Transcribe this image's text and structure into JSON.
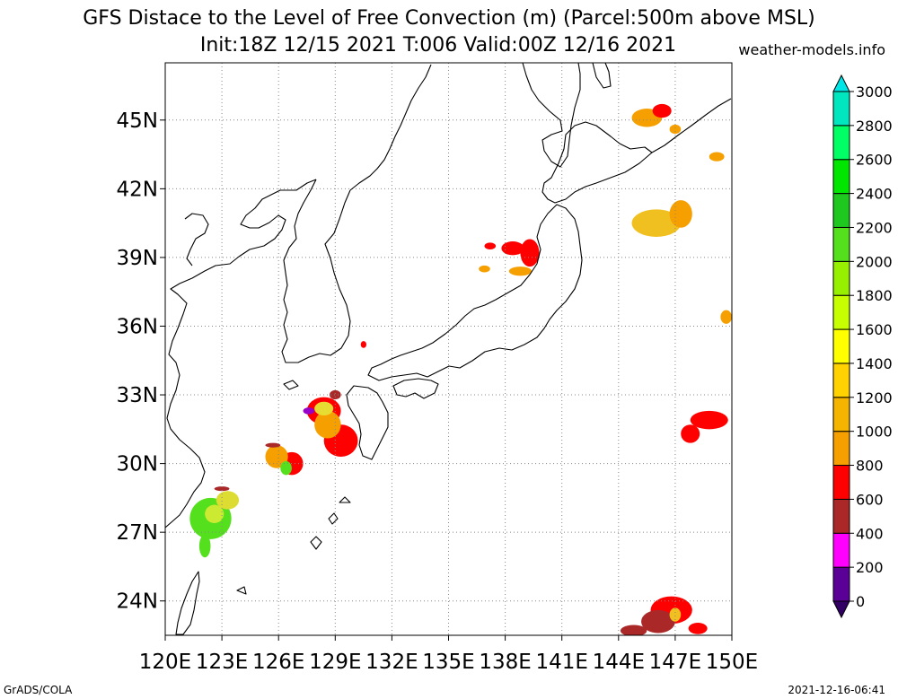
{
  "header": {
    "title_line1": "GFS Distace to the Level of Free Convection (m) (Parcel:500m above MSL)",
    "title_line2": "Init:18Z 12/15 2021 T:006 Valid:00Z 12/16 2021",
    "site": "weather-models.info"
  },
  "footer": {
    "left": "GrADS/COLA",
    "right": "2021-12-16-06:41"
  },
  "map": {
    "lon_range": [
      120,
      150
    ],
    "lat_range": [
      22.5,
      47.5
    ],
    "lon_ticks": [
      {
        "value": 120,
        "label": "120E"
      },
      {
        "value": 123,
        "label": "123E"
      },
      {
        "value": 126,
        "label": "126E"
      },
      {
        "value": 129,
        "label": "129E"
      },
      {
        "value": 132,
        "label": "132E"
      },
      {
        "value": 135,
        "label": "135E"
      },
      {
        "value": 138,
        "label": "138E"
      },
      {
        "value": 141,
        "label": "141E"
      },
      {
        "value": 144,
        "label": "144E"
      },
      {
        "value": 147,
        "label": "147E"
      },
      {
        "value": 150,
        "label": "150E"
      }
    ],
    "lat_ticks": [
      {
        "value": 24,
        "label": "24N"
      },
      {
        "value": 27,
        "label": "27N"
      },
      {
        "value": 30,
        "label": "30N"
      },
      {
        "value": 33,
        "label": "33N"
      },
      {
        "value": 36,
        "label": "36N"
      },
      {
        "value": 39,
        "label": "39N"
      },
      {
        "value": 42,
        "label": "42N"
      },
      {
        "value": 45,
        "label": "45N"
      }
    ],
    "grid": true,
    "field_patches": [
      {
        "lon": 122.4,
        "lat": 27.6,
        "rx": 1.1,
        "ry": 0.9,
        "color": "#55e01e"
      },
      {
        "lon": 122.6,
        "lat": 27.8,
        "rx": 0.5,
        "ry": 0.4,
        "color": "#cdea32"
      },
      {
        "lon": 123.3,
        "lat": 28.4,
        "rx": 0.6,
        "ry": 0.4,
        "color": "#dcdc32"
      },
      {
        "lon": 122.1,
        "lat": 26.4,
        "rx": 0.3,
        "ry": 0.5,
        "color": "#55e01e"
      },
      {
        "lon": 123.0,
        "lat": 28.9,
        "rx": 0.4,
        "ry": 0.1,
        "color": "#aa2828"
      },
      {
        "lon": 126.7,
        "lat": 30.0,
        "rx": 0.6,
        "ry": 0.5,
        "color": "#ff0000"
      },
      {
        "lon": 125.9,
        "lat": 30.3,
        "rx": 0.6,
        "ry": 0.5,
        "color": "#f5a000"
      },
      {
        "lon": 126.4,
        "lat": 29.8,
        "rx": 0.3,
        "ry": 0.3,
        "color": "#55e01e"
      },
      {
        "lon": 125.7,
        "lat": 30.8,
        "rx": 0.4,
        "ry": 0.1,
        "color": "#aa2828"
      },
      {
        "lon": 128.4,
        "lat": 32.3,
        "rx": 0.9,
        "ry": 0.6,
        "color": "#ff0000"
      },
      {
        "lon": 129.3,
        "lat": 31.0,
        "rx": 0.9,
        "ry": 0.7,
        "color": "#ff0000"
      },
      {
        "lon": 128.6,
        "lat": 31.7,
        "rx": 0.7,
        "ry": 0.6,
        "color": "#f5a000"
      },
      {
        "lon": 128.4,
        "lat": 32.4,
        "rx": 0.5,
        "ry": 0.3,
        "color": "#e6dc32"
      },
      {
        "lon": 127.6,
        "lat": 32.3,
        "rx": 0.3,
        "ry": 0.15,
        "color": "#9600c8"
      },
      {
        "lon": 129.0,
        "lat": 33.0,
        "rx": 0.3,
        "ry": 0.2,
        "color": "#aa2828"
      },
      {
        "lon": 130.5,
        "lat": 35.2,
        "rx": 0.15,
        "ry": 0.15,
        "color": "#ff0000"
      },
      {
        "lon": 138.4,
        "lat": 39.4,
        "rx": 0.6,
        "ry": 0.3,
        "color": "#ff0000"
      },
      {
        "lon": 139.3,
        "lat": 39.2,
        "rx": 0.5,
        "ry": 0.6,
        "color": "#ff0000"
      },
      {
        "lon": 138.8,
        "lat": 38.4,
        "rx": 0.6,
        "ry": 0.2,
        "color": "#f5a000"
      },
      {
        "lon": 137.2,
        "lat": 39.5,
        "rx": 0.3,
        "ry": 0.15,
        "color": "#ff0000"
      },
      {
        "lon": 136.9,
        "lat": 38.5,
        "rx": 0.3,
        "ry": 0.15,
        "color": "#f5a000"
      },
      {
        "lon": 145.5,
        "lat": 45.1,
        "rx": 0.8,
        "ry": 0.4,
        "color": "#f5a000"
      },
      {
        "lon": 146.3,
        "lat": 45.4,
        "rx": 0.5,
        "ry": 0.3,
        "color": "#ff0000"
      },
      {
        "lon": 147.0,
        "lat": 44.6,
        "rx": 0.3,
        "ry": 0.2,
        "color": "#f5a000"
      },
      {
        "lon": 149.2,
        "lat": 43.4,
        "rx": 0.4,
        "ry": 0.2,
        "color": "#f5a000"
      },
      {
        "lon": 146.0,
        "lat": 40.5,
        "rx": 1.3,
        "ry": 0.6,
        "color": "#f0c020"
      },
      {
        "lon": 147.3,
        "lat": 40.9,
        "rx": 0.6,
        "ry": 0.6,
        "color": "#f5a000"
      },
      {
        "lon": 149.7,
        "lat": 36.4,
        "rx": 0.3,
        "ry": 0.3,
        "color": "#f5a000"
      },
      {
        "lon": 148.8,
        "lat": 31.9,
        "rx": 1.0,
        "ry": 0.4,
        "color": "#ff0000"
      },
      {
        "lon": 147.8,
        "lat": 31.3,
        "rx": 0.5,
        "ry": 0.4,
        "color": "#ff0000"
      },
      {
        "lon": 146.8,
        "lat": 23.6,
        "rx": 1.1,
        "ry": 0.6,
        "color": "#ff0000"
      },
      {
        "lon": 146.1,
        "lat": 23.1,
        "rx": 0.9,
        "ry": 0.5,
        "color": "#aa2828"
      },
      {
        "lon": 144.8,
        "lat": 22.7,
        "rx": 0.7,
        "ry": 0.25,
        "color": "#aa2828"
      },
      {
        "lon": 148.2,
        "lat": 22.8,
        "rx": 0.5,
        "ry": 0.25,
        "color": "#ff0000"
      },
      {
        "lon": 147.0,
        "lat": 23.4,
        "rx": 0.3,
        "ry": 0.3,
        "color": "#f0c020"
      }
    ]
  },
  "colorbar": {
    "levels": [
      {
        "value": 0,
        "label": "0"
      },
      {
        "value": 200,
        "label": "200"
      },
      {
        "value": 400,
        "label": "400"
      },
      {
        "value": 600,
        "label": "600"
      },
      {
        "value": 800,
        "label": "800"
      },
      {
        "value": 1000,
        "label": "1000"
      },
      {
        "value": 1200,
        "label": "1200"
      },
      {
        "value": 1400,
        "label": "1400"
      },
      {
        "value": 1600,
        "label": "1600"
      },
      {
        "value": 1800,
        "label": "1800"
      },
      {
        "value": 2000,
        "label": "2000"
      },
      {
        "value": 2200,
        "label": "2200"
      },
      {
        "value": 2400,
        "label": "2400"
      },
      {
        "value": 2600,
        "label": "2600"
      },
      {
        "value": 2800,
        "label": "2800"
      },
      {
        "value": 3000,
        "label": "3000"
      }
    ],
    "colors": [
      "#5a0096",
      "#ff00ff",
      "#aa2828",
      "#ff0000",
      "#f5a000",
      "#f5b400",
      "#ffd200",
      "#ffff00",
      "#c8ff00",
      "#96f000",
      "#55e01e",
      "#1ec81e",
      "#00e600",
      "#00ff64",
      "#00e6be"
    ],
    "under_color": "#320064",
    "over_color": "#00e6e6"
  }
}
